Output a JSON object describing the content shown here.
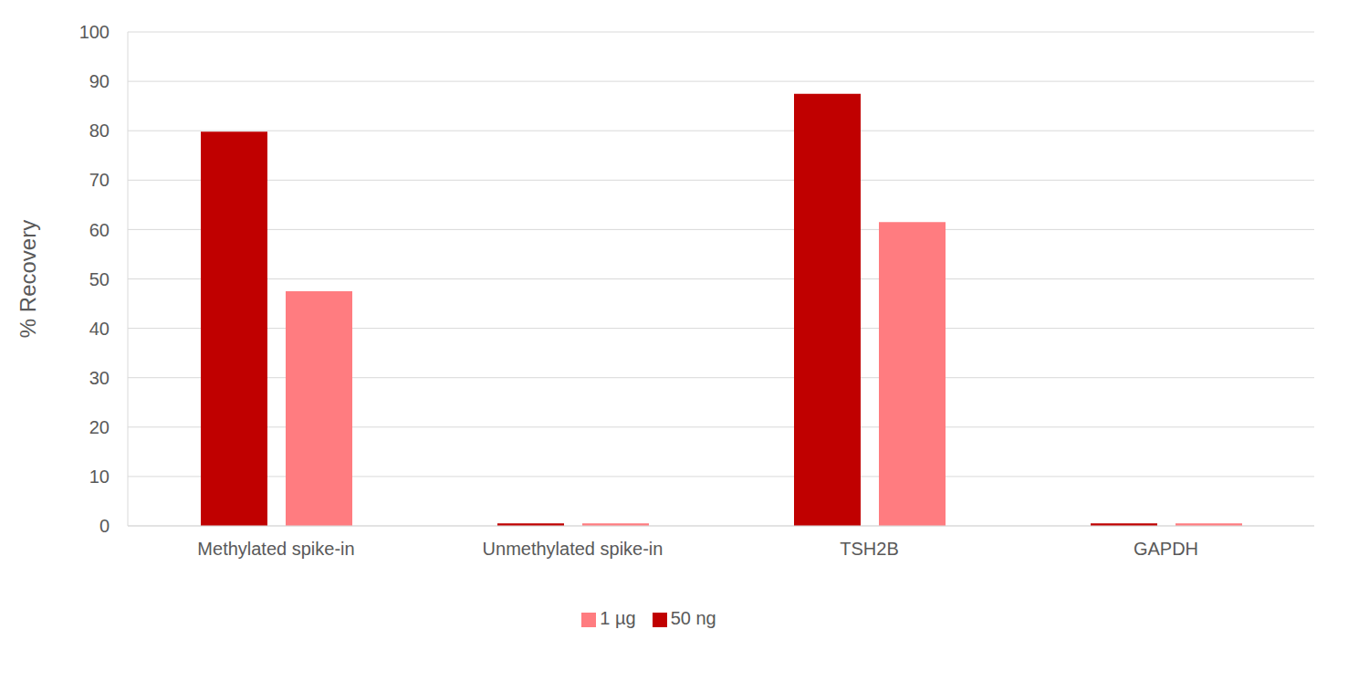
{
  "chart_data": {
    "type": "bar",
    "y_label": "% Recovery",
    "categories": [
      "Methylated spike-in",
      "Unmethylated spike-in",
      "TSH2B",
      "GAPDH"
    ],
    "series": [
      {
        "name": "50 ng",
        "color": "#c00000",
        "values": [
          79.8,
          0.5,
          87.5,
          0.5
        ]
      },
      {
        "name": "1 µg",
        "color": "#ff7c80",
        "values": [
          47.5,
          0.5,
          61.5,
          0.5
        ]
      }
    ],
    "ylim": [
      0,
      100
    ],
    "yticks": [
      0,
      10,
      20,
      30,
      40,
      50,
      60,
      70,
      80,
      90,
      100
    ],
    "grid": true,
    "legend": "bottom"
  }
}
